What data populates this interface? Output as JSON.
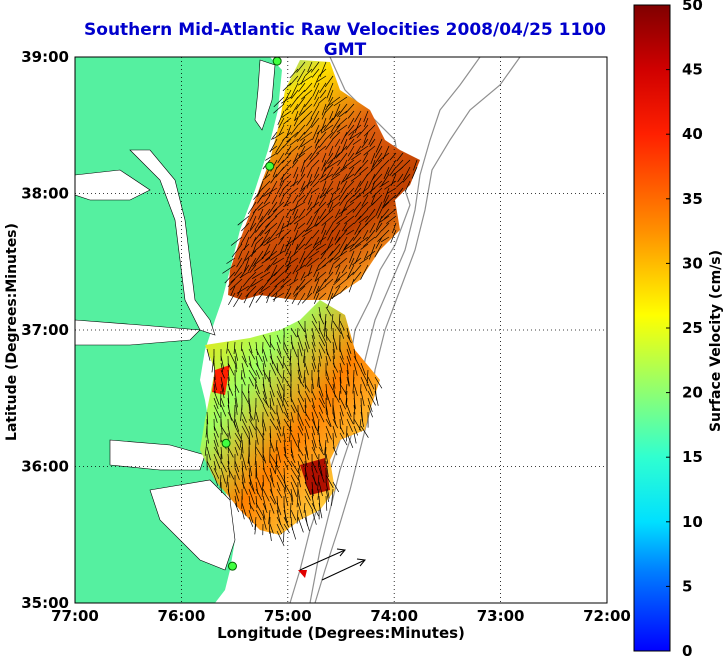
{
  "title": "Southern Mid-Atlantic Raw Velocities 2008/04/25 1100 GMT",
  "xlabel": "Longitude (Degrees:Minutes)",
  "ylabel": "Latitude (Degrees:Minutes)",
  "colorbar": {
    "label": "Surface Velocity (cm/s)",
    "range": [
      0,
      50
    ],
    "ticks": [
      "0",
      "5",
      "10",
      "15",
      "20",
      "25",
      "30",
      "35",
      "40",
      "45",
      "50"
    ]
  },
  "map": {
    "lon_ticks": [
      "77:00",
      "76:00",
      "75:00",
      "74:00",
      "73:00",
      "72:00"
    ],
    "lat_ticks": [
      "39:00",
      "38:00",
      "37:00",
      "36:00",
      "35:00"
    ],
    "lon_range": [
      -77,
      -72
    ],
    "lat_range": [
      35,
      39
    ],
    "grid": "dotted",
    "land_color": "#55f0a0",
    "stations": [
      {
        "lon": -75.1,
        "lat": 38.97
      },
      {
        "lon": -75.17,
        "lat": 38.2
      },
      {
        "lon": -75.58,
        "lat": 36.17
      },
      {
        "lon": -75.52,
        "lat": 35.27
      }
    ]
  }
}
